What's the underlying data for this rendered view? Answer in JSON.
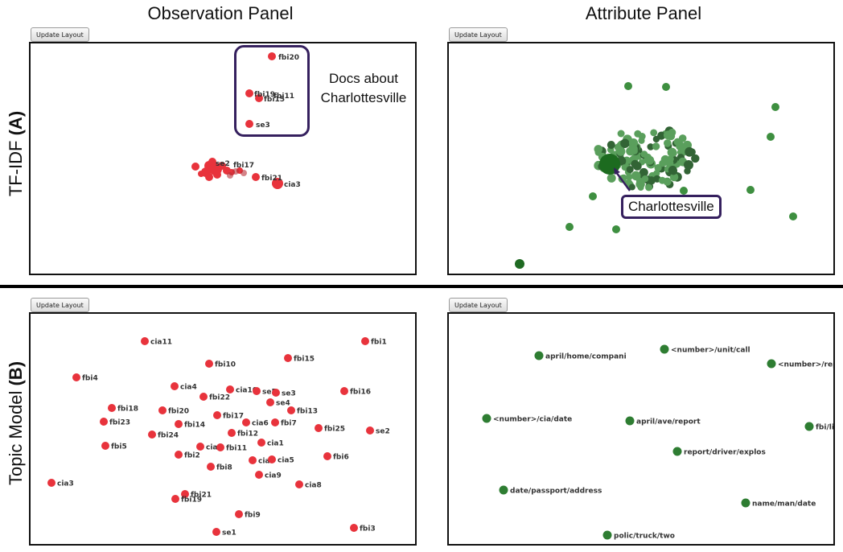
{
  "columns": {
    "observation_title": "Observation Panel",
    "attribute_title": "Attribute Panel"
  },
  "rows": {
    "tfidf": {
      "label": "TF-IDF",
      "tag": "(A)"
    },
    "topic": {
      "label": "Topic Model",
      "tag": "(B)"
    }
  },
  "buttons": {
    "update_layout": "Update Layout"
  },
  "colors": {
    "observation_node": "#e8333c",
    "attribute_node": "#2e7d32",
    "attribute_dark": "#0f4a12",
    "callout": "#35205e"
  },
  "annotations": {
    "docs_line1": "Docs about",
    "docs_line2": "Charlottesville",
    "charlottesville_label": "Charlottesville"
  },
  "tfidf_observation_nodes": {
    "top_cluster": [
      "fbi20",
      "fbi19",
      "fbi11",
      "fbi15",
      "se3"
    ],
    "bottom_cluster": [
      "se2",
      "fbi17",
      "fbi21",
      "cia3"
    ]
  },
  "topic_observation_nodes": [
    "cia11",
    "fbi1",
    "fbi10",
    "fbi15",
    "fbi4",
    "cia4",
    "cia10",
    "se5",
    "se3",
    "fbi16",
    "fbi22",
    "se4",
    "fbi18",
    "fbi20",
    "fbi13",
    "fbi23",
    "fbi14",
    "fbi17",
    "cia6",
    "fbi7",
    "fbi25",
    "se2",
    "fbi24",
    "fbi12",
    "cia1",
    "fbi5",
    "cia2",
    "fbi11",
    "fbi2",
    "fbi6",
    "cia7",
    "cia5",
    "fbi8",
    "cia9",
    "cia8",
    "cia3",
    "fbi21",
    "fbi19",
    "fbi9",
    "se1",
    "fbi3"
  ],
  "topic_attribute_nodes": [
    "april/home/compani",
    "<number>/unit/call",
    "<number>/rep",
    "<number>/cia/date",
    "april/ave/report",
    "fbi/li",
    "report/driver/explos",
    "date/passport/address",
    "name/man/date",
    "polic/truck/two"
  ]
}
